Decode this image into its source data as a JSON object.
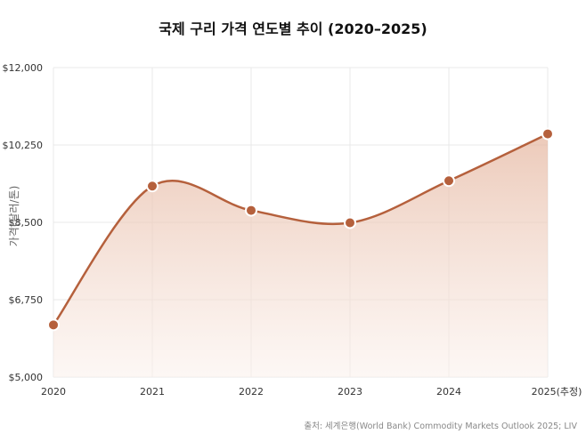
{
  "title": "국제 구리 가격 연도별 추이 (2020–2025)",
  "source": "출처: 세계은행(World Bank) Commodity Markets Outlook 2025; LIV",
  "chart_data": {
    "type": "line",
    "title": "국제 구리 가격 연도별 추이 (2020–2025)",
    "xlabel": "",
    "ylabel": "가격(달러/톤)",
    "categories": [
      "2020",
      "2021",
      "2022",
      "2023",
      "2024",
      "2025(추정)"
    ],
    "series": [
      {
        "values": [
          6180,
          9320,
          8770,
          8490,
          9440,
          10500
        ]
      }
    ],
    "ylim": [
      5000,
      12000
    ],
    "yticks": [
      5000,
      6750,
      8500,
      10250,
      12000
    ],
    "ytick_labels": [
      "$5,000",
      "$6,750",
      "$8,500",
      "$10,250",
      "$12,000"
    ],
    "grid": true,
    "area_fill": true,
    "colors": {
      "line": "#b5603c",
      "marker": "#b5603c",
      "marker_stroke": "#ffffff",
      "fill_top": "#e6b8a2",
      "fill_bottom": "#fbf1ec",
      "grid": "#e8e8e8"
    }
  }
}
